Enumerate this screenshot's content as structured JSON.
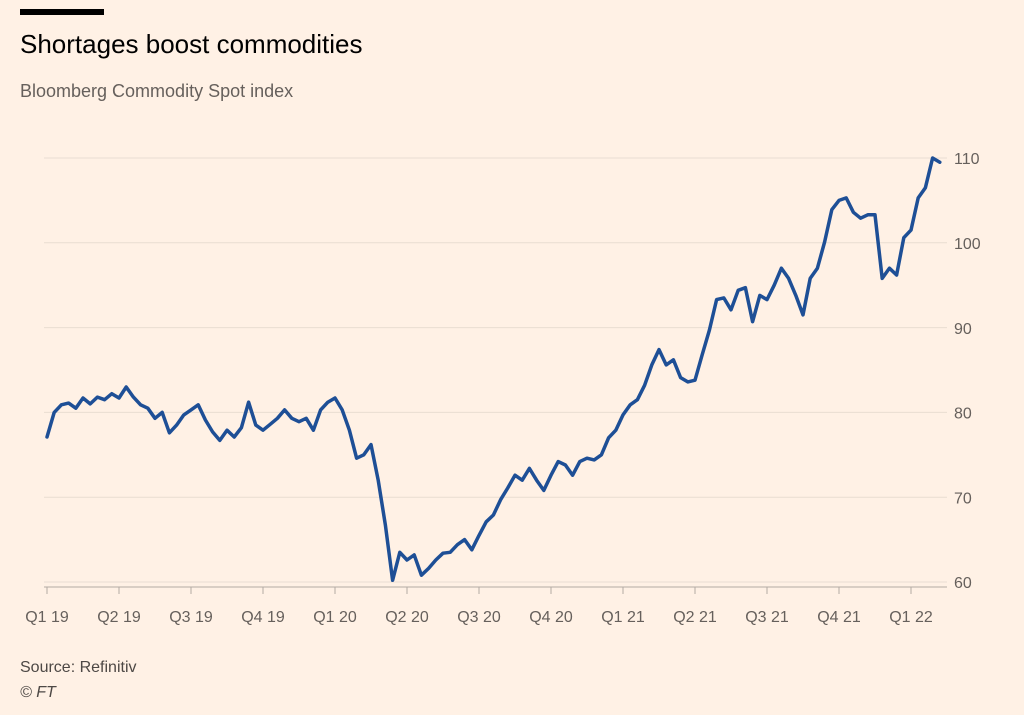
{
  "chart_data": {
    "type": "line",
    "title": "Shortages boost commodities",
    "subtitle": "Bloomberg Commodity Spot index",
    "source": "Source: Refinitiv",
    "credit": "© FT",
    "x": [
      0,
      0.1,
      0.2,
      0.3,
      0.4,
      0.5,
      0.6,
      0.7,
      0.8,
      0.9,
      1,
      1.1,
      1.2,
      1.3,
      1.4,
      1.5,
      1.6,
      1.7,
      1.8,
      1.9,
      2,
      2.1,
      2.2,
      2.3,
      2.4,
      2.5,
      2.6,
      2.7,
      2.8,
      2.9,
      3,
      3.1,
      3.2,
      3.3,
      3.4,
      3.5,
      3.6,
      3.7,
      3.8,
      3.9,
      4,
      4.1,
      4.2,
      4.3,
      4.4,
      4.5,
      4.6,
      4.7,
      4.8,
      4.9,
      5,
      5.1,
      5.2,
      5.3,
      5.4,
      5.5,
      5.6,
      5.7,
      5.8,
      5.9,
      6,
      6.1,
      6.2,
      6.3,
      6.4,
      6.5,
      6.6,
      6.7,
      6.8,
      6.9,
      7,
      7.1,
      7.2,
      7.3,
      7.4,
      7.5,
      7.6,
      7.7,
      7.8,
      7.9,
      8,
      8.1,
      8.2,
      8.3,
      8.4,
      8.5,
      8.6,
      8.7,
      8.8,
      8.9,
      9,
      9.1,
      9.2,
      9.3,
      9.4,
      9.5,
      9.6,
      9.7,
      9.8,
      9.9,
      10,
      10.1,
      10.2,
      10.3,
      10.4,
      10.5,
      10.6,
      10.7,
      10.8,
      10.9,
      11,
      11.1,
      11.2,
      11.3,
      11.4,
      11.5,
      11.6,
      11.7,
      11.8,
      11.9,
      12,
      12.1,
      12.2,
      12.3,
      12.4
    ],
    "series": [
      {
        "color": "#1e4f96",
        "values": [
          77.1,
          80.0,
          80.9,
          81.1,
          80.5,
          81.7,
          81.0,
          81.8,
          81.5,
          82.2,
          81.7,
          83.0,
          81.8,
          80.9,
          80.5,
          79.3,
          80.0,
          77.6,
          78.5,
          79.7,
          80.3,
          80.9,
          79.1,
          77.7,
          76.7,
          77.9,
          77.1,
          78.2,
          81.2,
          78.5,
          77.9,
          78.6,
          79.3,
          80.3,
          79.3,
          78.9,
          79.3,
          77.9,
          80.3,
          81.2,
          81.7,
          80.3,
          77.9,
          74.6,
          75.0,
          76.2,
          72.0,
          66.7,
          60.2,
          63.5,
          62.6,
          63.2,
          60.8,
          61.6,
          62.6,
          63.4,
          63.5,
          64.4,
          65.0,
          63.8,
          65.5,
          67.1,
          67.9,
          69.7,
          71.1,
          72.6,
          72.0,
          73.4,
          72.0,
          70.8,
          72.6,
          74.2,
          73.8,
          72.6,
          74.2,
          74.6,
          74.4,
          75.0,
          77.0,
          77.9,
          79.7,
          80.9,
          81.5,
          83.2,
          85.6,
          87.4,
          85.6,
          86.2,
          84.1,
          83.6,
          83.8,
          86.8,
          89.7,
          93.3,
          93.5,
          92.1,
          94.4,
          94.7,
          90.7,
          93.8,
          93.3,
          95.0,
          97.0,
          95.8,
          93.8,
          91.5,
          95.8,
          97.0,
          100.1,
          103.9,
          105.0,
          105.3,
          103.6,
          102.9,
          103.3,
          103.3,
          95.8,
          97.0,
          96.2,
          100.6,
          101.5,
          105.3,
          106.5,
          110.0,
          109.5
        ]
      }
    ],
    "xlim": [
      0,
      12.5
    ],
    "xticks": [
      {
        "value": 0,
        "label": "Q1 19"
      },
      {
        "value": 1,
        "label": "Q2 19"
      },
      {
        "value": 2,
        "label": "Q3 19"
      },
      {
        "value": 3,
        "label": "Q4 19"
      },
      {
        "value": 4,
        "label": "Q1 20"
      },
      {
        "value": 5,
        "label": "Q2 20"
      },
      {
        "value": 6,
        "label": "Q3 20"
      },
      {
        "value": 7,
        "label": "Q4 20"
      },
      {
        "value": 8,
        "label": "Q1 21"
      },
      {
        "value": 9,
        "label": "Q2 21"
      },
      {
        "value": 10,
        "label": "Q3 21"
      },
      {
        "value": 11,
        "label": "Q4 21"
      },
      {
        "value": 12,
        "label": "Q1 22"
      }
    ],
    "ylim": [
      60,
      110
    ],
    "yticks": [
      60,
      70,
      80,
      90,
      100,
      110
    ],
    "grid": true
  }
}
